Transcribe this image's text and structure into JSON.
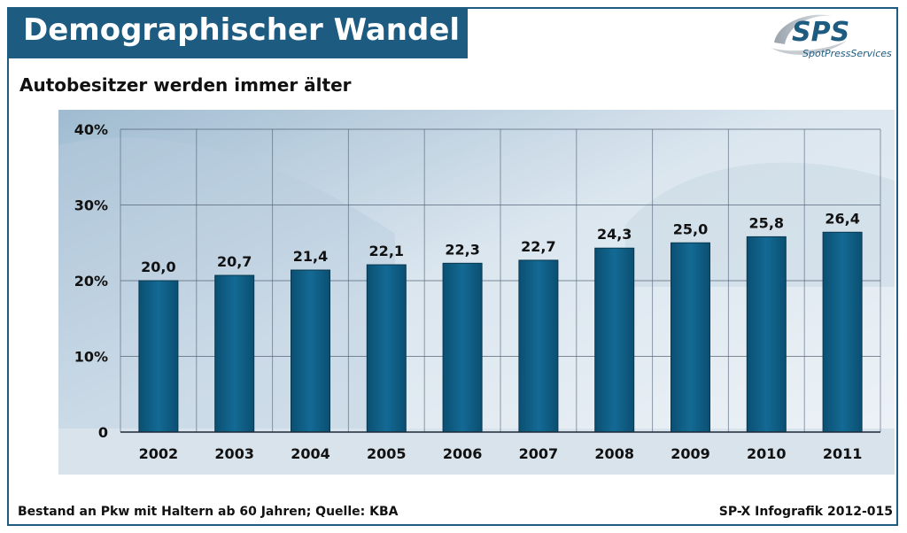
{
  "header": {
    "title": "Demographischer Wandel",
    "subtitle": "Autobesitzer werden immer älter"
  },
  "logo": {
    "mark": "SPS",
    "name": "SpotPressServices"
  },
  "footer": {
    "source": "Bestand an Pkw mit Haltern ab 60 Jahren; Quelle: KBA",
    "credit": "SP-X Infografik 2012-015"
  },
  "colors": {
    "brand": "#1d5b80",
    "bar": "#0e5a80",
    "panel": "#dce8f1",
    "grid": "#4f5f73"
  },
  "chart_data": {
    "type": "bar",
    "categories": [
      "2002",
      "2003",
      "2004",
      "2005",
      "2006",
      "2007",
      "2008",
      "2009",
      "2010",
      "2011"
    ],
    "values": [
      20.0,
      20.7,
      21.4,
      22.1,
      22.3,
      22.7,
      24.3,
      25.0,
      25.8,
      26.4
    ],
    "value_labels": [
      "20,0",
      "20,7",
      "21,4",
      "22,1",
      "22,3",
      "22,7",
      "24,3",
      "25,0",
      "25,8",
      "26,4"
    ],
    "y_ticks": [
      0,
      10,
      20,
      30,
      40
    ],
    "y_tick_labels": [
      "0",
      "10%",
      "20%",
      "30%",
      "40%"
    ],
    "ylim": [
      0,
      40
    ],
    "title": "Autobesitzer werden immer älter",
    "xlabel": "",
    "ylabel": "",
    "grid": true,
    "legend": "none"
  }
}
